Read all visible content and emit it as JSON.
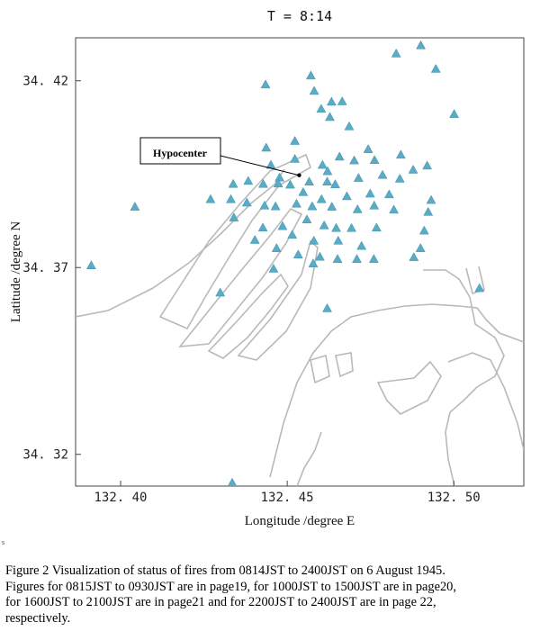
{
  "chart_data": {
    "type": "scatter",
    "title": "T = 8:14",
    "xlabel": "Longitude /degree E",
    "ylabel": "Latitude /degree N",
    "xlim": [
      132.3865,
      132.521
    ],
    "ylim": [
      34.3115,
      34.4315
    ],
    "xticks": [
      132.4,
      132.45,
      132.5
    ],
    "xtick_labels": [
      "132. 40",
      "132. 45",
      "132. 50"
    ],
    "yticks": [
      34.32,
      34.37,
      34.42
    ],
    "ytick_labels": [
      "34. 32",
      "34. 37",
      "34. 42"
    ],
    "grid": false,
    "legend": "none",
    "marker": "triangle",
    "marker_color": "#5aacc6",
    "coastline_color": "#b9b9b9",
    "annotation": {
      "text": "Hypocenter",
      "x": 132.4536,
      "y": 34.3947
    },
    "points": [
      {
        "x": 132.4901,
        "y": 34.4295
      },
      {
        "x": 132.4827,
        "y": 34.4273
      },
      {
        "x": 132.4946,
        "y": 34.4232
      },
      {
        "x": 132.4435,
        "y": 34.419
      },
      {
        "x": 132.4571,
        "y": 34.4214
      },
      {
        "x": 132.4581,
        "y": 34.4173
      },
      {
        "x": 132.4633,
        "y": 34.4144
      },
      {
        "x": 132.4665,
        "y": 34.4145
      },
      {
        "x": 132.4628,
        "y": 34.4103
      },
      {
        "x": 132.4602,
        "y": 34.4125
      },
      {
        "x": 132.4686,
        "y": 34.4078
      },
      {
        "x": 132.4743,
        "y": 34.4017
      },
      {
        "x": 132.5001,
        "y": 34.4111
      },
      {
        "x": 132.4437,
        "y": 34.4021
      },
      {
        "x": 132.4523,
        "y": 34.4039
      },
      {
        "x": 132.4523,
        "y": 34.3991
      },
      {
        "x": 132.4451,
        "y": 34.3975
      },
      {
        "x": 132.4606,
        "y": 34.3975
      },
      {
        "x": 132.4621,
        "y": 34.3958
      },
      {
        "x": 132.4657,
        "y": 34.3997
      },
      {
        "x": 132.4701,
        "y": 34.3987
      },
      {
        "x": 132.4762,
        "y": 34.3988
      },
      {
        "x": 132.4841,
        "y": 34.4002
      },
      {
        "x": 132.4878,
        "y": 34.3962
      },
      {
        "x": 132.492,
        "y": 34.3973
      },
      {
        "x": 132.4477,
        "y": 34.3941
      },
      {
        "x": 132.4509,
        "y": 34.3922
      },
      {
        "x": 132.4566,
        "y": 34.393
      },
      {
        "x": 132.462,
        "y": 34.393
      },
      {
        "x": 132.4644,
        "y": 34.3923
      },
      {
        "x": 132.4714,
        "y": 34.394
      },
      {
        "x": 132.4786,
        "y": 34.3948
      },
      {
        "x": 132.4838,
        "y": 34.3938
      },
      {
        "x": 132.4338,
        "y": 34.3924
      },
      {
        "x": 132.4383,
        "y": 34.3932
      },
      {
        "x": 132.4428,
        "y": 34.3924
      },
      {
        "x": 132.4473,
        "y": 34.3925
      },
      {
        "x": 132.4548,
        "y": 34.3902
      },
      {
        "x": 132.4603,
        "y": 34.3883
      },
      {
        "x": 132.4679,
        "y": 34.3891
      },
      {
        "x": 132.4749,
        "y": 34.3898
      },
      {
        "x": 132.4806,
        "y": 34.3896
      },
      {
        "x": 132.4932,
        "y": 34.3881
      },
      {
        "x": 132.4043,
        "y": 34.3863
      },
      {
        "x": 132.427,
        "y": 34.3883
      },
      {
        "x": 132.4331,
        "y": 34.3883
      },
      {
        "x": 132.4379,
        "y": 34.3874
      },
      {
        "x": 132.4432,
        "y": 34.3866
      },
      {
        "x": 132.4465,
        "y": 34.3864
      },
      {
        "x": 132.4528,
        "y": 34.3871
      },
      {
        "x": 132.4575,
        "y": 34.3864
      },
      {
        "x": 132.4634,
        "y": 34.3863
      },
      {
        "x": 132.4711,
        "y": 34.3856
      },
      {
        "x": 132.4761,
        "y": 34.3866
      },
      {
        "x": 132.482,
        "y": 34.3855
      },
      {
        "x": 132.4923,
        "y": 34.3849
      },
      {
        "x": 132.434,
        "y": 34.3834
      },
      {
        "x": 132.4427,
        "y": 34.3807
      },
      {
        "x": 132.4486,
        "y": 34.3811
      },
      {
        "x": 132.4559,
        "y": 34.3829
      },
      {
        "x": 132.4611,
        "y": 34.3813
      },
      {
        "x": 132.4647,
        "y": 34.3806
      },
      {
        "x": 132.4693,
        "y": 34.3806
      },
      {
        "x": 132.4768,
        "y": 34.3807
      },
      {
        "x": 132.4911,
        "y": 34.3799
      },
      {
        "x": 132.4515,
        "y": 34.3788
      },
      {
        "x": 132.458,
        "y": 34.3772
      },
      {
        "x": 132.4653,
        "y": 34.3772
      },
      {
        "x": 132.4723,
        "y": 34.3758
      },
      {
        "x": 132.49,
        "y": 34.3752
      },
      {
        "x": 132.4403,
        "y": 34.3774
      },
      {
        "x": 132.4468,
        "y": 34.3752
      },
      {
        "x": 132.4533,
        "y": 34.3735
      },
      {
        "x": 132.4598,
        "y": 34.3729
      },
      {
        "x": 132.4651,
        "y": 34.3723
      },
      {
        "x": 132.4709,
        "y": 34.3723
      },
      {
        "x": 132.476,
        "y": 34.3723
      },
      {
        "x": 132.488,
        "y": 34.3728
      },
      {
        "x": 132.3912,
        "y": 34.3706
      },
      {
        "x": 132.4459,
        "y": 34.3697
      },
      {
        "x": 132.4578,
        "y": 34.3711
      },
      {
        "x": 132.4299,
        "y": 34.3633
      },
      {
        "x": 132.462,
        "y": 34.3591
      },
      {
        "x": 132.5077,
        "y": 34.3645
      },
      {
        "x": 132.4335,
        "y": 34.3124
      }
    ]
  },
  "caption": {
    "line1": "Figure 2 Visualization of status of fires from 0814JST to 2400JST on 6 August 1945.",
    "line2": "Figures for 0815JST to 0930JST are in page19, for 1000JST  to 1500JST are in page20,",
    "line3": "for 1600JST to 2100JST are in page21 and for 2200JST to 2400JST are in page 22,",
    "line4": "respectively."
  },
  "page_mark": "s"
}
